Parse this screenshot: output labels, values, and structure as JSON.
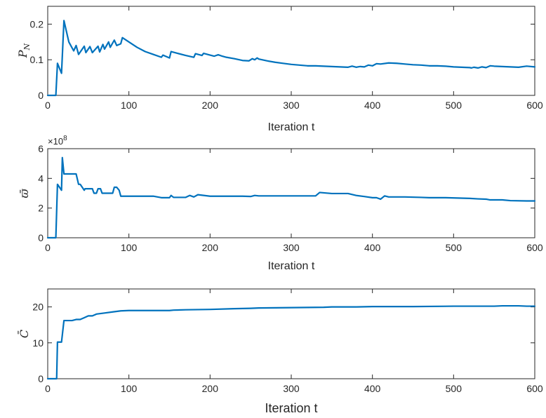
{
  "chart_data": [
    {
      "type": "line",
      "xlabel": "Iteration t",
      "ylabel": "P_N",
      "xlim": [
        0,
        600
      ],
      "ylim": [
        0,
        0.25
      ],
      "xticks": [
        "0",
        "100",
        "200",
        "300",
        "400",
        "500",
        "600"
      ],
      "yticks": [
        "0",
        "0.1",
        "0.2"
      ],
      "grid": false,
      "color": "#0072bd",
      "series": [
        {
          "x": [
            0,
            10,
            12,
            17,
            20,
            26,
            32,
            35,
            38,
            45,
            47,
            52,
            55,
            62,
            64,
            68,
            70,
            75,
            77,
            82,
            85,
            90,
            92,
            100,
            110,
            120,
            130,
            140,
            142,
            150,
            152,
            160,
            170,
            180,
            182,
            190,
            192,
            200,
            205,
            210,
            215,
            220,
            230,
            240,
            248,
            252,
            255,
            258,
            260,
            270,
            280,
            290,
            300,
            310,
            320,
            330,
            340,
            350,
            360,
            370,
            375,
            380,
            385,
            390,
            395,
            400,
            405,
            410,
            420,
            430,
            440,
            450,
            460,
            470,
            480,
            490,
            500,
            510,
            520,
            522,
            525,
            530,
            535,
            540,
            545,
            550,
            560,
            570,
            580,
            590,
            600
          ],
          "y": [
            0,
            0,
            0.09,
            0.062,
            0.21,
            0.15,
            0.125,
            0.14,
            0.115,
            0.138,
            0.12,
            0.137,
            0.12,
            0.138,
            0.122,
            0.143,
            0.13,
            0.15,
            0.135,
            0.155,
            0.14,
            0.145,
            0.162,
            0.15,
            0.135,
            0.123,
            0.115,
            0.107,
            0.113,
            0.105,
            0.123,
            0.118,
            0.112,
            0.107,
            0.117,
            0.112,
            0.118,
            0.113,
            0.11,
            0.114,
            0.11,
            0.107,
            0.103,
            0.098,
            0.097,
            0.103,
            0.1,
            0.105,
            0.102,
            0.097,
            0.093,
            0.09,
            0.087,
            0.085,
            0.083,
            0.083,
            0.082,
            0.081,
            0.08,
            0.079,
            0.082,
            0.079,
            0.081,
            0.08,
            0.085,
            0.083,
            0.089,
            0.088,
            0.091,
            0.09,
            0.088,
            0.086,
            0.085,
            0.083,
            0.083,
            0.082,
            0.08,
            0.079,
            0.078,
            0.077,
            0.079,
            0.077,
            0.08,
            0.078,
            0.083,
            0.082,
            0.081,
            0.08,
            0.079,
            0.082,
            0.08
          ]
        }
      ]
    },
    {
      "type": "line",
      "xlabel": "Iteration t",
      "ylabel": "ϖ̄",
      "multiplier": "×10",
      "multiplier_exp": "8",
      "xlim": [
        0,
        600
      ],
      "ylim": [
        0,
        6
      ],
      "xticks": [
        "0",
        "100",
        "200",
        "300",
        "400",
        "500",
        "600"
      ],
      "yticks": [
        "0",
        "2",
        "4",
        "6"
      ],
      "grid": false,
      "color": "#0072bd",
      "series": [
        {
          "x": [
            0,
            10,
            12,
            17,
            18,
            20,
            30,
            35,
            38,
            40,
            45,
            46,
            55,
            57,
            60,
            62,
            65,
            67,
            70,
            80,
            82,
            85,
            88,
            90,
            95,
            100,
            120,
            130,
            140,
            150,
            152,
            155,
            170,
            175,
            180,
            185,
            200,
            210,
            240,
            250,
            255,
            260,
            300,
            330,
            335,
            350,
            370,
            380,
            390,
            400,
            405,
            410,
            415,
            420,
            440,
            460,
            470,
            490,
            520,
            530,
            540,
            545,
            560,
            570,
            590,
            600
          ],
          "y": [
            0,
            0,
            3.6,
            3.2,
            5.4,
            4.3,
            4.3,
            4.3,
            3.6,
            3.6,
            3.2,
            3.3,
            3.3,
            3.0,
            3.0,
            3.3,
            3.3,
            3.0,
            3.0,
            3.0,
            3.4,
            3.4,
            3.2,
            2.8,
            2.8,
            2.8,
            2.8,
            2.8,
            2.7,
            2.7,
            2.85,
            2.72,
            2.72,
            2.85,
            2.75,
            2.9,
            2.8,
            2.8,
            2.8,
            2.78,
            2.85,
            2.82,
            2.82,
            2.82,
            3.05,
            2.98,
            2.98,
            2.85,
            2.78,
            2.7,
            2.7,
            2.6,
            2.82,
            2.75,
            2.75,
            2.72,
            2.7,
            2.7,
            2.65,
            2.62,
            2.6,
            2.55,
            2.55,
            2.5,
            2.48,
            2.48
          ]
        }
      ]
    },
    {
      "type": "line",
      "xlabel": "Iteration t",
      "ylabel": "C̄",
      "xlim": [
        0,
        600
      ],
      "ylim": [
        0,
        25
      ],
      "xticks": [
        "0",
        "100",
        "200",
        "300",
        "400",
        "500",
        "600"
      ],
      "yticks": [
        "0",
        "10",
        "20"
      ],
      "grid": false,
      "color": "#0072bd",
      "series": [
        {
          "x": [
            0,
            11,
            12,
            17,
            20,
            30,
            35,
            40,
            45,
            50,
            55,
            60,
            70,
            80,
            90,
            100,
            110,
            120,
            140,
            150,
            155,
            170,
            200,
            230,
            250,
            260,
            300,
            340,
            350,
            380,
            400,
            450,
            500,
            550,
            560,
            580,
            590,
            600
          ],
          "y": [
            0,
            0,
            10.2,
            10.2,
            16.2,
            16.2,
            16.5,
            16.5,
            17.0,
            17.5,
            17.5,
            18.0,
            18.3,
            18.6,
            18.9,
            19.0,
            19.0,
            19.0,
            19.0,
            19.0,
            19.1,
            19.2,
            19.3,
            19.5,
            19.6,
            19.7,
            19.8,
            19.9,
            20.0,
            20.0,
            20.1,
            20.1,
            20.2,
            20.2,
            20.3,
            20.3,
            20.2,
            20.2
          ]
        }
      ]
    }
  ]
}
